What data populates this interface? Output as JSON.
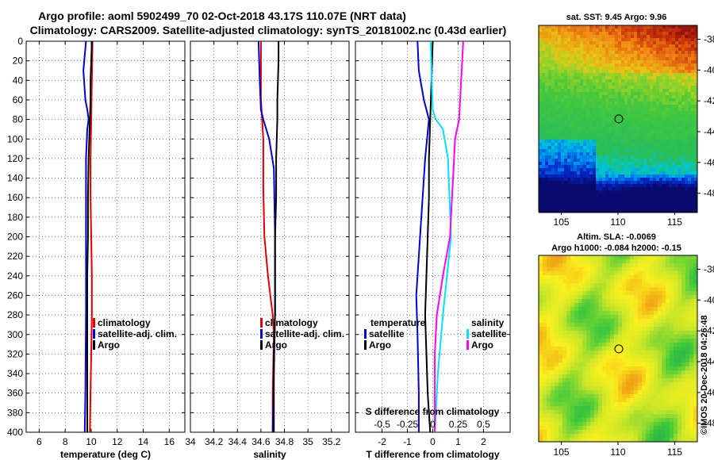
{
  "title": {
    "line1": "Argo profile: aoml 5902499_70 02-Oct-2018 43.17S 110.07E (NRT data)",
    "line2": "Climatology: CARS2009. Satellite-adjusted climatology: synTS_20181002.nc (0.43d earlier)"
  },
  "colors": {
    "climatology": "#e00000",
    "satellite": "#0000d0",
    "argo": "#000000",
    "sat_salinity": "#00e0ff",
    "argo_salinity": "#ff00ff"
  },
  "chart_data": [
    {
      "type": "line",
      "name": "temperature_profile",
      "xlabel": "temperature (deg C)",
      "ylabel": "",
      "xlim": [
        5,
        17.2
      ],
      "ylim": [
        400,
        0
      ],
      "xticks": [
        "6",
        "8",
        "10",
        "12",
        "14",
        "16"
      ],
      "xtick_values": [
        6,
        8,
        10,
        12,
        14,
        16
      ],
      "yticks": [
        "0",
        "20",
        "40",
        "60",
        "80",
        "100",
        "120",
        "140",
        "160",
        "180",
        "200",
        "220",
        "240",
        "260",
        "280",
        "300",
        "320",
        "340",
        "360",
        "380",
        "400"
      ],
      "ytick_values": [
        0,
        20,
        40,
        60,
        80,
        100,
        120,
        140,
        160,
        180,
        200,
        220,
        240,
        260,
        280,
        300,
        320,
        340,
        360,
        380,
        400
      ],
      "legend": [
        "climatology",
        "satellite-adj. clim.",
        "Argo"
      ],
      "series": [
        {
          "name": "climatology",
          "color": "#e00000",
          "depth": [
            0,
            40,
            80,
            120,
            160,
            200,
            240,
            280,
            320,
            360,
            400
          ],
          "values": [
            10.1,
            10.05,
            10.0,
            9.95,
            9.95,
            10.0,
            10.05,
            10.05,
            10.0,
            9.95,
            9.9
          ]
        },
        {
          "name": "satellite-adj. clim.",
          "color": "#0000d0",
          "depth": [
            0,
            30,
            50,
            60,
            70,
            80,
            90,
            120,
            200,
            280,
            360,
            400
          ],
          "values": [
            9.6,
            9.4,
            9.5,
            9.55,
            9.7,
            9.8,
            9.7,
            9.6,
            9.6,
            9.6,
            9.55,
            9.5
          ]
        },
        {
          "name": "Argo",
          "color": "#000000",
          "depth": [
            0,
            20,
            40,
            60,
            80,
            100,
            120,
            160,
            200,
            240,
            280,
            320,
            360,
            400
          ],
          "values": [
            10.05,
            10.0,
            9.95,
            9.95,
            9.9,
            9.85,
            9.8,
            9.75,
            9.75,
            9.7,
            9.7,
            9.7,
            9.7,
            9.7
          ]
        }
      ]
    },
    {
      "type": "line",
      "name": "salinity_profile",
      "xlabel": "salinity",
      "xlim": [
        34.0,
        35.35
      ],
      "ylim": [
        400,
        0
      ],
      "xticks": [
        "34",
        "34.2",
        "34.4",
        "34.6",
        "34.8",
        "35",
        "35.2"
      ],
      "xtick_values": [
        34,
        34.2,
        34.4,
        34.6,
        34.8,
        35,
        35.2
      ],
      "legend": [
        "climatology",
        "satellite-adj. clim.",
        "Argo"
      ],
      "series": [
        {
          "name": "climatology",
          "color": "#e00000",
          "depth": [
            0,
            20,
            60,
            80,
            100,
            150,
            200,
            240,
            280,
            300,
            360,
            400
          ],
          "values": [
            34.6,
            34.6,
            34.6,
            34.61,
            34.62,
            34.62,
            34.63,
            34.66,
            34.7,
            34.71,
            34.7,
            34.7
          ]
        },
        {
          "name": "satellite-adj. clim.",
          "color": "#0000d0",
          "depth": [
            0,
            40,
            70,
            80,
            100,
            130,
            200,
            280,
            340,
            400
          ],
          "values": [
            34.58,
            34.59,
            34.6,
            34.62,
            34.67,
            34.71,
            34.72,
            34.72,
            34.71,
            34.7
          ]
        },
        {
          "name": "Argo",
          "color": "#000000",
          "depth": [
            0,
            20,
            60,
            80,
            120,
            160,
            200,
            240,
            280,
            320,
            360,
            400
          ],
          "values": [
            34.75,
            34.75,
            34.74,
            34.74,
            34.73,
            34.73,
            34.72,
            34.72,
            34.72,
            34.71,
            34.71,
            34.71
          ]
        }
      ]
    },
    {
      "type": "line",
      "name": "difference_profile",
      "xlabel": "T difference from climatology",
      "xlabel2": "S difference from climatology",
      "xlim": [
        -3.05,
        3.05
      ],
      "ylim": [
        400,
        0
      ],
      "xticks": [
        "-2",
        "-1",
        "0",
        "1",
        "2"
      ],
      "xtick_values": [
        -2,
        -1,
        0,
        1,
        2
      ],
      "xticks2": [
        "-0.5",
        "-0.25",
        "0",
        "0.25",
        "0.5"
      ],
      "legend_temperature_title": "temperature",
      "legend_salinity_title": "salinity",
      "legend_temperature": [
        "satellite",
        "Argo"
      ],
      "legend_salinity": [
        "satellite",
        "Argo"
      ],
      "series": [
        {
          "name": "T satellite",
          "color": "#0000d0",
          "depth": [
            0,
            30,
            60,
            80,
            120,
            200,
            240,
            260,
            300,
            360,
            400
          ],
          "values": [
            -0.6,
            -0.55,
            -0.35,
            -0.15,
            -0.3,
            -0.5,
            -0.6,
            -0.65,
            -0.6,
            -0.55,
            -0.55
          ]
        },
        {
          "name": "T Argo",
          "color": "#000000",
          "depth": [
            0,
            40,
            80,
            120,
            160,
            200,
            240,
            280,
            320,
            360,
            400
          ],
          "values": [
            0.0,
            -0.05,
            -0.1,
            -0.15,
            -0.15,
            -0.2,
            -0.25,
            -0.3,
            -0.25,
            -0.2,
            -0.1
          ]
        },
        {
          "name": "S satellite",
          "color": "#00e0ff",
          "depth": [
            0,
            40,
            70,
            80,
            90,
            120,
            200,
            280,
            340,
            400
          ],
          "values": [
            -0.02,
            -0.01,
            0.0,
            0.03,
            0.1,
            0.15,
            0.18,
            0.1,
            0.05,
            0.02
          ]
        },
        {
          "name": "S Argo",
          "color": "#ff00ff",
          "depth": [
            0,
            40,
            80,
            100,
            140,
            200,
            240,
            280,
            320,
            360,
            400
          ],
          "values": [
            0.3,
            0.28,
            0.26,
            0.22,
            0.2,
            0.17,
            0.1,
            0.04,
            0.02,
            0.02,
            0.02
          ]
        }
      ]
    },
    {
      "type": "heatmap",
      "name": "sst_map",
      "title": "sat. SST: 9.45 Argo: 9.96",
      "xticks": [
        "105",
        "110",
        "115"
      ],
      "xtick_values": [
        105,
        110,
        115
      ],
      "yticks": [
        "-38",
        "-40",
        "-42",
        "-44",
        "-46",
        "-48"
      ],
      "ytick_values": [
        -38,
        -40,
        -42,
        -44,
        -46,
        -48
      ],
      "xlim": [
        103,
        117
      ],
      "ylim": [
        -49.2,
        -37.1
      ],
      "marker": {
        "lon": 110.07,
        "lat": -43.17
      }
    },
    {
      "type": "heatmap",
      "name": "sla_map",
      "title1": "Altim. SLA: -0.0069",
      "title2": "Argo h1000: -0.084 h2000: -0.15",
      "xticks": [
        "105",
        "110",
        "115"
      ],
      "xtick_values": [
        105,
        110,
        115
      ],
      "yticks": [
        "-38",
        "-40",
        "-42",
        "-44",
        "-46",
        "-48"
      ],
      "ytick_values": [
        -38,
        -40,
        -42,
        -44,
        -46,
        -48
      ],
      "xlim": [
        103,
        117
      ],
      "ylim": [
        -49.2,
        -37.1
      ],
      "marker": {
        "lon": 110.07,
        "lat": -43.17
      }
    }
  ],
  "credit": "©IMOS 20-Dec-2018 04:26:48"
}
